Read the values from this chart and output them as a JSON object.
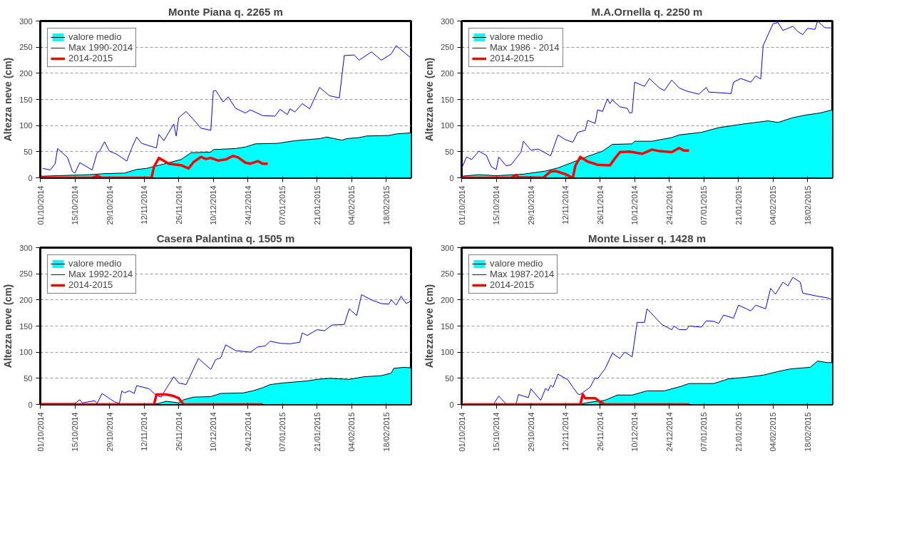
{
  "chart_data": [
    {
      "type": "line",
      "title": "Monte Piana q. 2265 m",
      "ylabel": "Altezza neve (cm)",
      "xlim": [
        "2014-10-01",
        "2015-02-28"
      ],
      "ylim": [
        0,
        300
      ],
      "yticks": [
        0,
        50,
        100,
        150,
        200,
        250,
        300
      ],
      "xticks": [
        {
          "value": "2014-10-01",
          "label": "01/10/2014"
        },
        {
          "value": "2014-10-15",
          "label": "15/10/2014"
        },
        {
          "value": "2014-10-29",
          "label": "29/10/2014"
        },
        {
          "value": "2014-11-12",
          "label": "12/11/2014"
        },
        {
          "value": "2014-11-26",
          "label": "26/11/2014"
        },
        {
          "value": "2014-12-10",
          "label": "10/12/2014"
        },
        {
          "value": "2014-12-24",
          "label": "24/12/2014"
        },
        {
          "value": "2015-01-07",
          "label": "07/01/2015"
        },
        {
          "value": "2015-01-21",
          "label": "21/01/2015"
        },
        {
          "value": "2015-02-04",
          "label": "04/02/2015"
        },
        {
          "value": "2015-02-18",
          "label": "18/02/2015"
        }
      ],
      "grid": "y",
      "legend": "top left",
      "series": [
        {
          "name": "valore medio",
          "type": "area",
          "color": "#00ffff",
          "x": [
            "2014-10-01",
            "2014-10-21",
            "2014-10-27",
            "2014-11-04",
            "2014-11-09",
            "2014-11-13",
            "2014-11-18",
            "2014-11-27",
            "2014-12-01",
            "2014-12-09",
            "2014-12-10",
            "2014-12-19",
            "2014-12-23",
            "2014-12-27",
            "2015-01-05",
            "2015-01-12",
            "2015-01-22",
            "2015-01-25",
            "2015-01-31",
            "2015-02-02",
            "2015-02-07",
            "2015-02-10",
            "2015-02-19",
            "2015-02-22",
            "2015-02-28"
          ],
          "values": [
            3,
            6,
            8,
            9,
            16,
            18,
            24,
            35,
            48,
            49,
            54,
            56,
            59,
            65,
            66,
            71,
            75,
            78,
            72,
            75,
            77,
            80,
            81,
            84,
            86
          ]
        },
        {
          "name": "Max 1990-2014",
          "color": "#0000ff",
          "x": [
            "2014-10-02",
            "2014-10-05",
            "2014-10-07",
            "2014-10-08",
            "2014-10-12",
            "2014-10-14",
            "2014-10-15",
            "2014-10-17",
            "2014-10-22",
            "2014-10-24",
            "2014-10-25",
            "2014-10-27",
            "2014-10-29",
            "2014-11-01",
            "2014-11-05",
            "2014-11-07",
            "2014-11-09",
            "2014-11-11",
            "2014-11-17",
            "2014-11-18",
            "2014-11-20",
            "2014-11-24",
            "2014-11-25",
            "2014-11-26",
            "2014-11-29",
            "2014-12-03",
            "2014-12-05",
            "2014-12-09",
            "2014-12-10",
            "2014-12-11",
            "2014-12-14",
            "2014-12-16",
            "2014-12-19",
            "2014-12-23",
            "2014-12-25",
            "2014-12-30",
            "2015-01-04",
            "2015-01-06",
            "2015-01-09",
            "2015-01-10",
            "2015-01-12",
            "2015-01-15",
            "2015-01-18",
            "2015-01-22",
            "2015-01-26",
            "2015-01-30",
            "2015-02-01",
            "2015-02-05",
            "2015-02-07",
            "2015-02-12",
            "2015-02-16",
            "2015-02-20",
            "2015-02-22",
            "2015-02-28"
          ],
          "values": [
            18,
            15,
            27,
            56,
            39,
            12,
            9,
            29,
            15,
            48,
            51,
            69,
            51,
            45,
            32,
            57,
            78,
            66,
            57,
            83,
            71,
            103,
            80,
            115,
            127,
            106,
            95,
            91,
            166,
            167,
            145,
            155,
            133,
            124,
            130,
            119,
            118,
            131,
            121,
            132,
            126,
            142,
            132,
            173,
            157,
            153,
            234,
            235,
            225,
            241,
            225,
            237,
            253,
            229
          ]
        },
        {
          "name": "2014-2015",
          "type": "line",
          "color": "#ff0000",
          "x": [
            "2014-10-01",
            "2014-10-22",
            "2014-10-24",
            "2014-10-26",
            "2014-11-15",
            "2014-11-16",
            "2014-11-18",
            "2014-11-22",
            "2014-11-27",
            "2014-11-30",
            "2014-12-02",
            "2014-12-05",
            "2014-12-07",
            "2014-12-09",
            "2014-12-12",
            "2014-12-15",
            "2014-12-18",
            "2014-12-20",
            "2014-12-23",
            "2014-12-25",
            "2014-12-28",
            "2014-12-30",
            "2015-01-01"
          ],
          "values": [
            0,
            0,
            4,
            0,
            0,
            21,
            38,
            27,
            24,
            18,
            30,
            40,
            36,
            38,
            33,
            35,
            42,
            39,
            29,
            27,
            32,
            27,
            27
          ]
        }
      ]
    },
    {
      "type": "line",
      "title": "M.A.Ornella q. 2250 m",
      "ylabel": "Altezza neve (cm)",
      "xlim": [
        "2014-10-01",
        "2015-02-28"
      ],
      "ylim": [
        0,
        300
      ],
      "yticks": [
        0,
        50,
        100,
        150,
        200,
        250,
        300
      ],
      "xticks": [
        {
          "value": "2014-10-01",
          "label": "01/10/2014"
        },
        {
          "value": "2014-10-15",
          "label": "15/10/2014"
        },
        {
          "value": "2014-10-29",
          "label": "29/10/2014"
        },
        {
          "value": "2014-11-12",
          "label": "12/11/2014"
        },
        {
          "value": "2014-11-26",
          "label": "26/11/2014"
        },
        {
          "value": "2014-12-10",
          "label": "10/12/2014"
        },
        {
          "value": "2014-12-24",
          "label": "24/12/2014"
        },
        {
          "value": "2015-01-07",
          "label": "07/01/2015"
        },
        {
          "value": "2015-01-21",
          "label": "21/01/2015"
        },
        {
          "value": "2015-02-04",
          "label": "04/02/2015"
        },
        {
          "value": "2015-02-18",
          "label": "18/02/2015"
        }
      ],
      "grid": "y",
      "legend": "top left",
      "series": [
        {
          "name": "valore medio",
          "type": "area",
          "color": "#00ffff",
          "x": [
            "2014-10-01",
            "2014-10-08",
            "2014-10-15",
            "2014-10-26",
            "2014-11-04",
            "2014-11-09",
            "2014-11-14",
            "2014-11-21",
            "2014-11-27",
            "2014-12-01",
            "2014-12-09",
            "2014-12-10",
            "2014-12-17",
            "2014-12-25",
            "2014-12-28",
            "2015-01-06",
            "2015-01-13",
            "2015-01-23",
            "2015-02-02",
            "2015-02-06",
            "2015-02-12",
            "2015-02-17",
            "2015-02-23",
            "2015-02-28"
          ],
          "values": [
            3,
            6,
            4,
            7,
            13,
            19,
            28,
            41,
            51,
            64,
            65,
            70,
            70,
            77,
            82,
            87,
            96,
            103,
            109,
            106,
            115,
            120,
            124,
            130
          ]
        },
        {
          "name": "Max 1986 - 2014",
          "color": "#0000ff",
          "x": [
            "2014-10-01",
            "2014-10-03",
            "2014-10-05",
            "2014-10-08",
            "2014-10-11",
            "2014-10-13",
            "2014-10-15",
            "2014-10-16",
            "2014-10-19",
            "2014-10-21",
            "2014-10-25",
            "2014-10-26",
            "2014-10-29",
            "2014-11-01",
            "2014-11-06",
            "2014-11-09",
            "2014-11-12",
            "2014-11-15",
            "2014-11-17",
            "2014-11-20",
            "2014-11-21",
            "2014-11-24",
            "2014-11-25",
            "2014-11-27",
            "2014-11-29",
            "2014-11-30",
            "2014-12-01",
            "2014-12-04",
            "2014-12-07",
            "2014-12-08",
            "2014-12-09",
            "2014-12-10",
            "2014-12-14",
            "2014-12-16",
            "2014-12-20",
            "2014-12-22",
            "2014-12-25",
            "2014-12-28",
            "2014-12-31",
            "2015-01-05",
            "2015-01-08",
            "2015-01-09",
            "2015-01-16",
            "2015-01-18",
            "2015-01-19",
            "2015-01-22",
            "2015-01-26",
            "2015-01-28",
            "2015-01-30",
            "2015-01-31",
            "2015-02-04",
            "2015-02-06",
            "2015-02-08",
            "2015-02-12",
            "2015-02-14",
            "2015-02-16",
            "2015-02-18",
            "2015-02-21",
            "2015-02-22",
            "2015-02-25",
            "2015-02-28"
          ],
          "values": [
            18,
            40,
            35,
            51,
            43,
            21,
            16,
            40,
            23,
            25,
            49,
            70,
            53,
            55,
            42,
            82,
            73,
            68,
            87,
            91,
            110,
            104,
            130,
            127,
            151,
            142,
            149,
            136,
            133,
            124,
            125,
            183,
            175,
            190,
            172,
            167,
            187,
            172,
            166,
            160,
            173,
            164,
            162,
            161,
            183,
            190,
            183,
            195,
            189,
            253,
            295,
            297,
            282,
            290,
            280,
            274,
            286,
            284,
            300,
            287,
            287
          ]
        },
        {
          "name": "2014-2015",
          "type": "line",
          "color": "#ff0000",
          "x": [
            "2014-10-01",
            "2014-10-21",
            "2014-10-23",
            "2014-10-24",
            "2014-11-03",
            "2014-11-06",
            "2014-11-08",
            "2014-11-12",
            "2014-11-14",
            "2014-11-15",
            "2014-11-16",
            "2014-11-18",
            "2014-11-21",
            "2014-11-25",
            "2014-11-30",
            "2014-12-02",
            "2014-12-04",
            "2014-12-08",
            "2014-12-13",
            "2014-12-17",
            "2014-12-20",
            "2014-12-25",
            "2014-12-28",
            "2014-12-30",
            "2015-01-01"
          ],
          "values": [
            0,
            0,
            5,
            1,
            0,
            12,
            13,
            7,
            2,
            0,
            23,
            40,
            31,
            25,
            24,
            37,
            49,
            50,
            46,
            54,
            51,
            49,
            57,
            52,
            52
          ]
        }
      ]
    },
    {
      "type": "line",
      "title": "Casera Palantina q. 1505 m",
      "ylabel": "Altezza neve (cm)",
      "xlim": [
        "2014-10-01",
        "2015-02-28"
      ],
      "ylim": [
        0,
        300
      ],
      "yticks": [
        0,
        50,
        100,
        150,
        200,
        250,
        300
      ],
      "xticks": [
        {
          "value": "2014-10-01",
          "label": "01/10/2014"
        },
        {
          "value": "2014-10-15",
          "label": "15/10/2014"
        },
        {
          "value": "2014-10-29",
          "label": "29/10/2014"
        },
        {
          "value": "2014-11-12",
          "label": "12/11/2014"
        },
        {
          "value": "2014-11-26",
          "label": "26/11/2014"
        },
        {
          "value": "2014-12-10",
          "label": "10/12/2014"
        },
        {
          "value": "2014-12-24",
          "label": "24/12/2014"
        },
        {
          "value": "2015-01-07",
          "label": "07/01/2015"
        },
        {
          "value": "2015-01-21",
          "label": "21/01/2015"
        },
        {
          "value": "2015-02-04",
          "label": "04/02/2015"
        },
        {
          "value": "2015-02-18",
          "label": "18/02/2015"
        }
      ],
      "grid": "y",
      "legend": "top left",
      "series": [
        {
          "name": "valore medio",
          "type": "area",
          "color": "#00ffff",
          "x": [
            "2014-10-01",
            "2014-11-17",
            "2014-11-21",
            "2014-11-26",
            "2014-11-28",
            "2014-12-02",
            "2014-12-09",
            "2014-12-13",
            "2014-12-22",
            "2014-12-26",
            "2014-12-30",
            "2015-01-02",
            "2015-01-07",
            "2015-01-12",
            "2015-01-17",
            "2015-01-21",
            "2015-01-26",
            "2015-02-03",
            "2015-02-09",
            "2015-02-16",
            "2015-02-20",
            "2015-02-21",
            "2015-02-25",
            "2015-02-28"
          ],
          "values": [
            1,
            1,
            6,
            3,
            9,
            14,
            15,
            21,
            22,
            26,
            32,
            38,
            41,
            43,
            45,
            48,
            50,
            48,
            53,
            55,
            60,
            69,
            71,
            70
          ]
        },
        {
          "name": "Max 1992-2014",
          "color": "#0000ff",
          "x": [
            "2014-10-01",
            "2014-10-15",
            "2014-10-17",
            "2014-10-18",
            "2014-10-23",
            "2014-10-24",
            "2014-10-26",
            "2014-10-31",
            "2014-11-02",
            "2014-11-03",
            "2014-11-04",
            "2014-11-06",
            "2014-11-08",
            "2014-11-09",
            "2014-11-14",
            "2014-11-17",
            "2014-11-19",
            "2014-11-20",
            "2014-11-24",
            "2014-11-26",
            "2014-11-29",
            "2014-12-04",
            "2014-12-09",
            "2014-12-11",
            "2014-12-13",
            "2014-12-15",
            "2014-12-19",
            "2014-12-25",
            "2014-12-28",
            "2014-12-31",
            "2015-01-02",
            "2015-01-06",
            "2015-01-10",
            "2015-01-14",
            "2015-01-15",
            "2015-01-17",
            "2015-01-21",
            "2015-01-24",
            "2015-01-27",
            "2015-02-01",
            "2015-02-03",
            "2015-02-06",
            "2015-02-08",
            "2015-02-12",
            "2015-02-16",
            "2015-02-19",
            "2015-02-20",
            "2015-02-22",
            "2015-02-24",
            "2015-02-26",
            "2015-02-28"
          ],
          "values": [
            2,
            2,
            9,
            3,
            7,
            2,
            21,
            5,
            2,
            26,
            22,
            26,
            21,
            36,
            30,
            17,
            14,
            23,
            53,
            41,
            38,
            88,
            67,
            86,
            89,
            114,
            103,
            100,
            110,
            112,
            121,
            117,
            116,
            119,
            137,
            132,
            143,
            141,
            152,
            153,
            183,
            170,
            210,
            200,
            193,
            192,
            200,
            190,
            207,
            193,
            198
          ]
        },
        {
          "name": "2014-2015",
          "type": "line",
          "color": "#ff0000",
          "x": [
            "2014-10-01",
            "2014-11-16",
            "2014-11-17",
            "2014-11-21",
            "2014-11-24",
            "2014-11-26",
            "2014-11-28",
            "2014-12-30"
          ],
          "values": [
            0,
            0,
            19,
            19,
            16,
            12,
            0,
            0
          ]
        }
      ]
    },
    {
      "type": "line",
      "title": "Monte Lisser q. 1428 m",
      "ylabel": "Altezza neve (cm)",
      "xlim": [
        "2014-10-01",
        "2015-02-28"
      ],
      "ylim": [
        0,
        300
      ],
      "yticks": [
        0,
        50,
        100,
        150,
        200,
        250,
        300
      ],
      "xticks": [
        {
          "value": "2014-10-01",
          "label": "01/10/2014"
        },
        {
          "value": "2014-10-15",
          "label": "15/10/2014"
        },
        {
          "value": "2014-10-29",
          "label": "29/10/2014"
        },
        {
          "value": "2014-11-12",
          "label": "12/11/2014"
        },
        {
          "value": "2014-11-26",
          "label": "26/11/2014"
        },
        {
          "value": "2014-12-10",
          "label": "10/12/2014"
        },
        {
          "value": "2014-12-24",
          "label": "24/12/2014"
        },
        {
          "value": "2015-01-07",
          "label": "07/01/2015"
        },
        {
          "value": "2015-01-21",
          "label": "21/01/2015"
        },
        {
          "value": "2015-02-04",
          "label": "04/02/2015"
        },
        {
          "value": "2015-02-18",
          "label": "18/02/2015"
        }
      ],
      "grid": "y",
      "legend": "top left",
      "series": [
        {
          "name": "valore medio",
          "type": "area",
          "color": "#00ffff",
          "x": [
            "2014-10-01",
            "2014-11-18",
            "2014-11-23",
            "2014-11-28",
            "2014-12-03",
            "2014-12-09",
            "2014-12-15",
            "2014-12-22",
            "2014-12-29",
            "2015-01-01",
            "2015-01-11",
            "2015-01-17",
            "2015-01-24",
            "2015-01-31",
            "2015-02-06",
            "2015-02-11",
            "2015-02-19",
            "2015-02-22",
            "2015-02-26",
            "2015-02-28"
          ],
          "values": [
            1,
            1,
            5,
            8,
            18,
            18,
            26,
            26,
            35,
            40,
            40,
            49,
            52,
            56,
            63,
            68,
            71,
            83,
            80,
            80
          ]
        },
        {
          "name": "Max 1987-2014",
          "color": "#0000ff",
          "x": [
            "2014-10-01",
            "2014-10-12",
            "2014-10-14",
            "2014-10-16",
            "2014-10-19",
            "2014-10-23",
            "2014-10-24",
            "2014-10-28",
            "2014-10-29",
            "2014-11-02",
            "2014-11-04",
            "2014-11-05",
            "2014-11-06",
            "2014-11-07",
            "2014-11-09",
            "2014-11-13",
            "2014-11-15",
            "2014-11-17",
            "2014-11-18",
            "2014-11-22",
            "2014-11-24",
            "2014-11-25",
            "2014-11-28",
            "2014-12-01",
            "2014-12-04",
            "2014-12-06",
            "2014-12-09",
            "2014-12-11",
            "2014-12-14",
            "2014-12-15",
            "2014-12-21",
            "2014-12-25",
            "2014-12-26",
            "2014-12-28",
            "2014-12-31",
            "2015-01-01",
            "2015-01-06",
            "2015-01-08",
            "2015-01-11",
            "2015-01-13",
            "2015-01-15",
            "2015-01-19",
            "2015-01-21",
            "2015-01-26",
            "2015-01-28",
            "2015-02-01",
            "2015-02-03",
            "2015-02-05",
            "2015-02-08",
            "2015-02-10",
            "2015-02-12",
            "2015-02-15",
            "2015-02-16",
            "2015-02-22",
            "2015-02-26",
            "2015-02-28"
          ],
          "values": [
            0,
            0,
            1,
            16,
            1,
            1,
            19,
            13,
            30,
            8,
            31,
            26,
            37,
            33,
            58,
            47,
            33,
            20,
            19,
            33,
            51,
            49,
            68,
            98,
            88,
            100,
            91,
            157,
            157,
            183,
            153,
            143,
            150,
            143,
            143,
            150,
            148,
            160,
            159,
            155,
            171,
            165,
            190,
            179,
            190,
            183,
            222,
            211,
            234,
            227,
            243,
            234,
            213,
            207,
            204,
            200
          ]
        },
        {
          "name": "2014-2015",
          "type": "line",
          "color": "#ff0000",
          "x": [
            "2014-10-01",
            "2014-11-18",
            "2014-11-19",
            "2014-11-20",
            "2014-11-24",
            "2014-11-26",
            "2014-11-28",
            "2015-01-01"
          ],
          "values": [
            0,
            0,
            19,
            12,
            12,
            5,
            0,
            0
          ]
        }
      ]
    }
  ]
}
